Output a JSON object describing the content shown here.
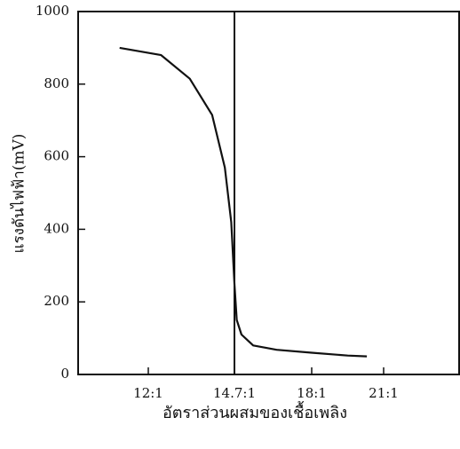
{
  "chart_data": {
    "type": "line",
    "xlabel": "อัตราส่วนผสมของเชื้อเพลิง",
    "ylabel": "แรงดันไฟฟ้า(mV)",
    "x": [
      11.1,
      12.4,
      13.3,
      14.0,
      14.4,
      14.6,
      14.7,
      14.8,
      15.0,
      15.5,
      16.5,
      18.0,
      19.5,
      20.3
    ],
    "series": [
      {
        "color": "#111111",
        "values": [
          900,
          880,
          815,
          715,
          570,
          420,
          250,
          150,
          110,
          80,
          68,
          60,
          52,
          50
        ]
      }
    ],
    "xlim": [
      9.8,
      24.2
    ],
    "xticks": [
      {
        "value": 12,
        "label": "12:1"
      },
      {
        "value": 14.7,
        "label": "14.7:1"
      },
      {
        "value": 18,
        "label": "18:1"
      },
      {
        "value": 21,
        "label": "21:1"
      }
    ],
    "ylim": [
      0,
      1000
    ],
    "yticks": [
      0,
      200,
      400,
      600,
      800,
      1000
    ],
    "vline": 14.7,
    "grid": false
  }
}
